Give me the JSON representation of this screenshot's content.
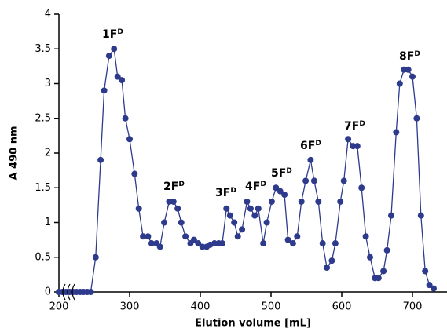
{
  "chart_data": {
    "type": "line",
    "x_label": "Elution volume [mL]",
    "y_label": "A 490 nm",
    "x": [
      200,
      205,
      210,
      215,
      220,
      225,
      230,
      235,
      240,
      245,
      252,
      259,
      264,
      271,
      278,
      283,
      289,
      294,
      300,
      307,
      313,
      319,
      326,
      331,
      338,
      343,
      349,
      356,
      362,
      368,
      373,
      379,
      386,
      391,
      397,
      403,
      409,
      414,
      420,
      426,
      431,
      437,
      442,
      448,
      453,
      459,
      466,
      471,
      477,
      482,
      489,
      494,
      501,
      507,
      513,
      519,
      524,
      531,
      537,
      543,
      549,
      556,
      561,
      567,
      573,
      579,
      586,
      591,
      598,
      603,
      609,
      616,
      622,
      628,
      634,
      640,
      647,
      652,
      659,
      664,
      670,
      677,
      682,
      688,
      694,
      700,
      706,
      712,
      718,
      724,
      730
    ],
    "series": [
      {
        "color": "#2e3a8c",
        "values": [
          0,
          0,
          0,
          0,
          0,
          0,
          0,
          0,
          0,
          0,
          0.5,
          1.9,
          2.9,
          3.4,
          3.5,
          3.1,
          3.05,
          2.5,
          2.2,
          1.7,
          1.2,
          0.8,
          0.8,
          0.7,
          0.7,
          0.65,
          1.0,
          1.3,
          1.3,
          1.2,
          1.0,
          0.8,
          0.7,
          0.75,
          0.7,
          0.65,
          0.65,
          0.68,
          0.7,
          0.7,
          0.7,
          1.2,
          1.1,
          1.0,
          0.8,
          0.9,
          1.3,
          1.2,
          1.1,
          1.2,
          0.7,
          1.0,
          1.3,
          1.5,
          1.45,
          1.4,
          0.75,
          0.7,
          0.8,
          1.3,
          1.6,
          1.9,
          1.6,
          1.3,
          0.7,
          0.35,
          0.45,
          0.7,
          1.3,
          1.6,
          2.2,
          2.1,
          2.1,
          1.5,
          0.8,
          0.5,
          0.2,
          0.2,
          0.3,
          0.6,
          1.1,
          2.3,
          3.0,
          3.2,
          3.2,
          3.1,
          2.5,
          1.1,
          0.3,
          0.1,
          0.05
        ]
      }
    ],
    "xlim": [
      200,
      750
    ],
    "ylim": [
      0,
      4
    ],
    "xticks": [
      200,
      300,
      400,
      500,
      600,
      700
    ],
    "yticks": [
      0,
      0.5,
      1,
      1.5,
      2,
      2.5,
      3,
      3.5,
      4
    ],
    "annotations": [
      {
        "text": "1F",
        "sup": "D"
      },
      {
        "text": "2F",
        "sup": "D"
      },
      {
        "text": "3F",
        "sup": "D"
      },
      {
        "text": "4F",
        "sup": "D"
      },
      {
        "text": "5F",
        "sup": "D"
      },
      {
        "text": "6F",
        "sup": "D"
      },
      {
        "text": "7F",
        "sup": "D"
      },
      {
        "text": "8F",
        "sup": "D"
      }
    ]
  }
}
